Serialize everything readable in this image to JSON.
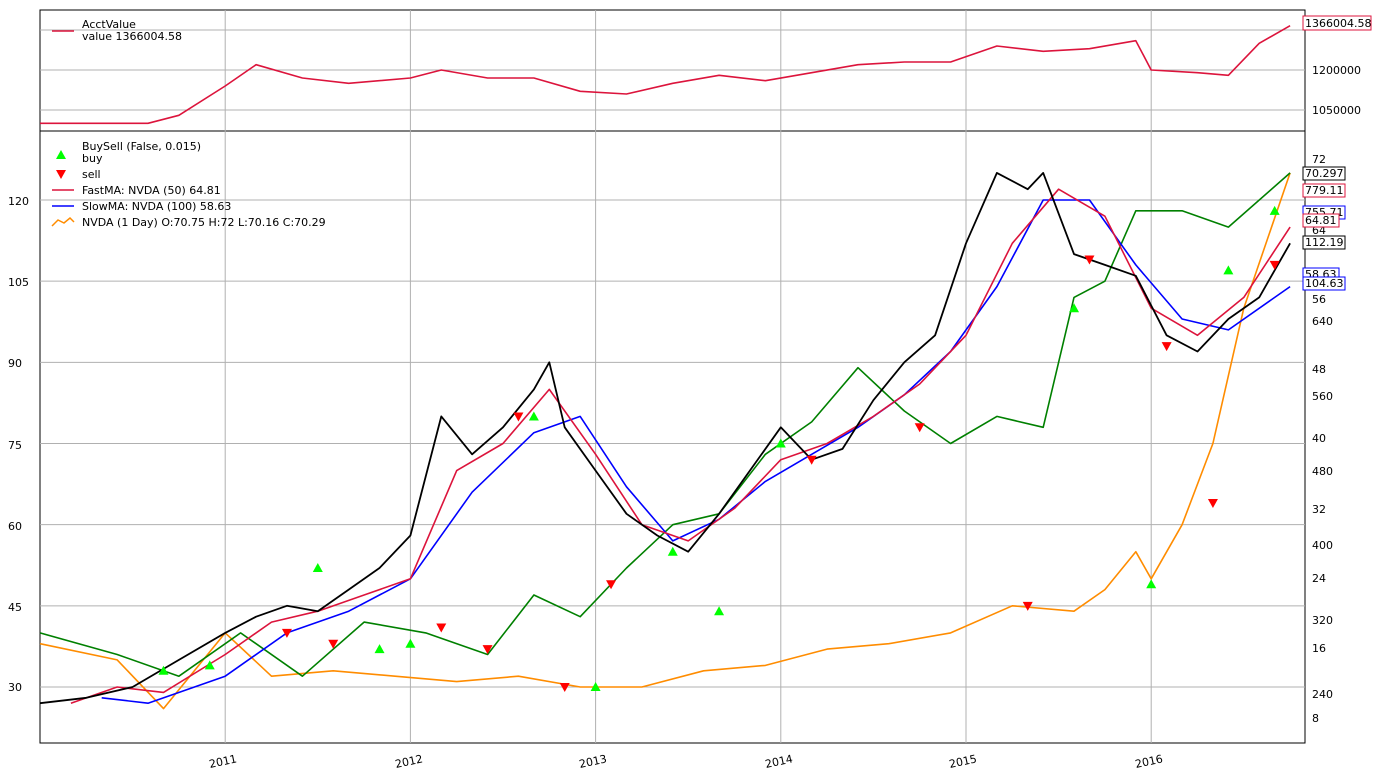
{
  "top_panel": {
    "legend_title": "AcctValue",
    "legend_value": "value 1366004.58",
    "last_value_tag": "1366004.58",
    "yticks": [
      "1050000",
      "1200000"
    ],
    "line_color": "#dc143c"
  },
  "main_panel": {
    "legend": [
      {
        "label": "BuySell (False, 0.015)",
        "marker": "none"
      },
      {
        "label": "buy",
        "marker": "triangle-up",
        "color": "#00ff00"
      },
      {
        "label": "sell",
        "marker": "triangle-down",
        "color": "#ff0000"
      },
      {
        "label": "FastMA: NVDA (50) 64.81",
        "marker": "line",
        "color": "#dc143c"
      },
      {
        "label": "SlowMA: NVDA (100) 58.63",
        "marker": "line",
        "color": "#0000ff"
      },
      {
        "label": "NVDA (1 Day) O:70.75 H:72 L:70.16 C:70.29",
        "marker": "line",
        "color": "#ff8c00"
      }
    ],
    "left_yticks": [
      "30",
      "45",
      "60",
      "75",
      "90",
      "105",
      "120"
    ],
    "right_ticks": [
      {
        "label": "72",
        "value": 72
      },
      {
        "label": "64",
        "value": 64
      },
      {
        "label": "56",
        "value": 56
      },
      {
        "label": "48",
        "value": 48
      },
      {
        "label": "40",
        "value": 40
      },
      {
        "label": "32",
        "value": 32
      },
      {
        "label": "24",
        "value": 24
      },
      {
        "label": "16",
        "value": 16
      },
      {
        "label": "8",
        "value": 8
      },
      {
        "label": "640",
        "value": 640
      },
      {
        "label": "560",
        "value": 560
      },
      {
        "label": "480",
        "value": 480
      },
      {
        "label": "400",
        "value": 400
      },
      {
        "label": "320",
        "value": 320
      },
      {
        "label": "240",
        "value": 240
      }
    ],
    "right_tags": [
      {
        "text": "70.297",
        "color": "#000000"
      },
      {
        "text": "779.11",
        "color": "#dc143c"
      },
      {
        "text": "755.71",
        "color": "#0000ff"
      },
      {
        "text": "64.81",
        "color": "#dc143c"
      },
      {
        "text": "112.19",
        "color": "#000000"
      },
      {
        "text": "58.63",
        "color": "#0000ff"
      },
      {
        "text": "104.63",
        "color": "#0000ff"
      }
    ],
    "xticks": [
      "2011",
      "2012",
      "2013",
      "2014",
      "2015",
      "2016"
    ]
  },
  "chart_data": [
    {
      "type": "line",
      "panel": "account",
      "series": [
        {
          "name": "AcctValue",
          "color": "#dc143c",
          "x": [
            "2010-01",
            "2010-06",
            "2010-08",
            "2010-10",
            "2011-01",
            "2011-03",
            "2011-06",
            "2011-09",
            "2012-01",
            "2012-03",
            "2012-06",
            "2012-09",
            "2012-12",
            "2013-03",
            "2013-06",
            "2013-09",
            "2013-12",
            "2014-03",
            "2014-06",
            "2014-09",
            "2014-12",
            "2015-03",
            "2015-06",
            "2015-09",
            "2015-12",
            "2016-01",
            "2016-04",
            "2016-06",
            "2016-08",
            "2016-10"
          ],
          "y": [
            1000000,
            1000000,
            1000000,
            1030000,
            1140000,
            1220000,
            1170000,
            1150000,
            1170000,
            1200000,
            1170000,
            1170000,
            1120000,
            1110000,
            1150000,
            1180000,
            1160000,
            1190000,
            1220000,
            1230000,
            1230000,
            1290000,
            1270000,
            1280000,
            1310000,
            1200000,
            1190000,
            1180000,
            1300000,
            1366004.58
          ]
        }
      ]
    },
    {
      "type": "line",
      "panel": "main",
      "x_axis": "time",
      "xticks": [
        "2011",
        "2012",
        "2013",
        "2014",
        "2015",
        "2016"
      ],
      "ylim_left": [
        20,
        130
      ],
      "series": [
        {
          "name": "NVDA",
          "color": "#000000",
          "x": [
            "2010-01",
            "2010-04",
            "2010-07",
            "2010-10",
            "2011-01",
            "2011-03",
            "2011-05",
            "2011-07",
            "2011-09",
            "2011-11",
            "2012-01",
            "2012-03",
            "2012-05",
            "2012-07",
            "2012-09",
            "2012-10",
            "2012-11",
            "2013-01",
            "2013-03",
            "2013-05",
            "2013-07",
            "2013-09",
            "2013-11",
            "2014-01",
            "2014-03",
            "2014-05",
            "2014-07",
            "2014-09",
            "2014-11",
            "2015-01",
            "2015-03",
            "2015-05",
            "2015-06",
            "2015-08",
            "2015-10",
            "2015-12",
            "2016-02",
            "2016-04",
            "2016-06",
            "2016-08",
            "2016-10"
          ],
          "y": [
            27,
            28,
            30,
            35,
            40,
            43,
            45,
            44,
            48,
            52,
            58,
            80,
            73,
            78,
            85,
            90,
            78,
            70,
            62,
            58,
            55,
            62,
            70,
            78,
            72,
            74,
            83,
            90,
            95,
            112,
            125,
            122,
            125,
            110,
            108,
            106,
            95,
            92,
            98,
            102,
            112
          ]
        },
        {
          "name": "FastMA: NVDA (50)",
          "color": "#dc143c",
          "x": [
            "2010-03",
            "2010-06",
            "2010-09",
            "2011-01",
            "2011-04",
            "2011-07",
            "2011-10",
            "2012-01",
            "2012-04",
            "2012-07",
            "2012-10",
            "2013-01",
            "2013-04",
            "2013-07",
            "2013-10",
            "2014-01",
            "2014-04",
            "2014-07",
            "2014-10",
            "2015-01",
            "2015-04",
            "2015-07",
            "2015-10",
            "2016-01",
            "2016-04",
            "2016-07",
            "2016-10"
          ],
          "y": [
            27,
            30,
            29,
            36,
            42,
            44,
            47,
            50,
            70,
            75,
            85,
            73,
            60,
            57,
            63,
            72,
            75,
            80,
            86,
            95,
            112,
            122,
            117,
            100,
            95,
            102,
            115
          ]
        },
        {
          "name": "SlowMA: NVDA (100)",
          "color": "#0000ff",
          "x": [
            "2010-05",
            "2010-08",
            "2011-01",
            "2011-05",
            "2011-09",
            "2012-01",
            "2012-05",
            "2012-09",
            "2012-12",
            "2013-03",
            "2013-06",
            "2013-09",
            "2013-12",
            "2014-03",
            "2014-06",
            "2014-09",
            "2014-12",
            "2015-03",
            "2015-06",
            "2015-09",
            "2015-12",
            "2016-03",
            "2016-06",
            "2016-10"
          ],
          "y": [
            28,
            27,
            32,
            40,
            44,
            50,
            66,
            77,
            80,
            67,
            57,
            61,
            68,
            73,
            78,
            84,
            92,
            104,
            120,
            120,
            108,
            98,
            96,
            104
          ]
        },
        {
          "name": "NVDA-green",
          "color": "#008000",
          "x": [
            "2010-01",
            "2010-06",
            "2010-10",
            "2011-02",
            "2011-06",
            "2011-10",
            "2012-02",
            "2012-06",
            "2012-09",
            "2012-12",
            "2013-03",
            "2013-06",
            "2013-09",
            "2013-12",
            "2014-03",
            "2014-06",
            "2014-09",
            "2014-12",
            "2015-03",
            "2015-06",
            "2015-08",
            "2015-10",
            "2015-12",
            "2016-03",
            "2016-06",
            "2016-10"
          ],
          "y": [
            40,
            36,
            32,
            40,
            32,
            42,
            40,
            36,
            47,
            43,
            52,
            60,
            62,
            73,
            79,
            89,
            81,
            75,
            80,
            78,
            102,
            105,
            118,
            118,
            115,
            125
          ]
        },
        {
          "name": "NVDA-orange",
          "color": "#ff8c00",
          "x": [
            "2010-01",
            "2010-06",
            "2010-09",
            "2011-01",
            "2011-04",
            "2011-08",
            "2011-12",
            "2012-04",
            "2012-08",
            "2012-12",
            "2013-04",
            "2013-08",
            "2013-12",
            "2014-04",
            "2014-08",
            "2014-12",
            "2015-04",
            "2015-08",
            "2015-10",
            "2015-12",
            "2016-01",
            "2016-03",
            "2016-05",
            "2016-07",
            "2016-10"
          ],
          "y": [
            38,
            35,
            26,
            40,
            32,
            33,
            32,
            31,
            32,
            30,
            30,
            33,
            34,
            37,
            38,
            40,
            45,
            44,
            48,
            55,
            50,
            60,
            75,
            100,
            125
          ]
        }
      ],
      "buy_markers": {
        "x": [
          "2010-09",
          "2010-12",
          "2011-07",
          "2011-11",
          "2012-01",
          "2012-09",
          "2013-01",
          "2013-06",
          "2013-09",
          "2014-01",
          "2015-08",
          "2016-01",
          "2016-06",
          "2016-09"
        ],
        "y": [
          33,
          34,
          52,
          37,
          38,
          80,
          30,
          55,
          44,
          75,
          100,
          49,
          107,
          118
        ]
      },
      "sell_markers": {
        "x": [
          "2011-05",
          "2011-08",
          "2012-03",
          "2012-06",
          "2012-08",
          "2012-11",
          "2013-02",
          "2014-03",
          "2014-10",
          "2015-05",
          "2015-09",
          "2016-02",
          "2016-05",
          "2016-09"
        ],
        "y": [
          40,
          38,
          41,
          37,
          80,
          30,
          49,
          72,
          78,
          45,
          109,
          93,
          64,
          108
        ]
      }
    }
  ]
}
